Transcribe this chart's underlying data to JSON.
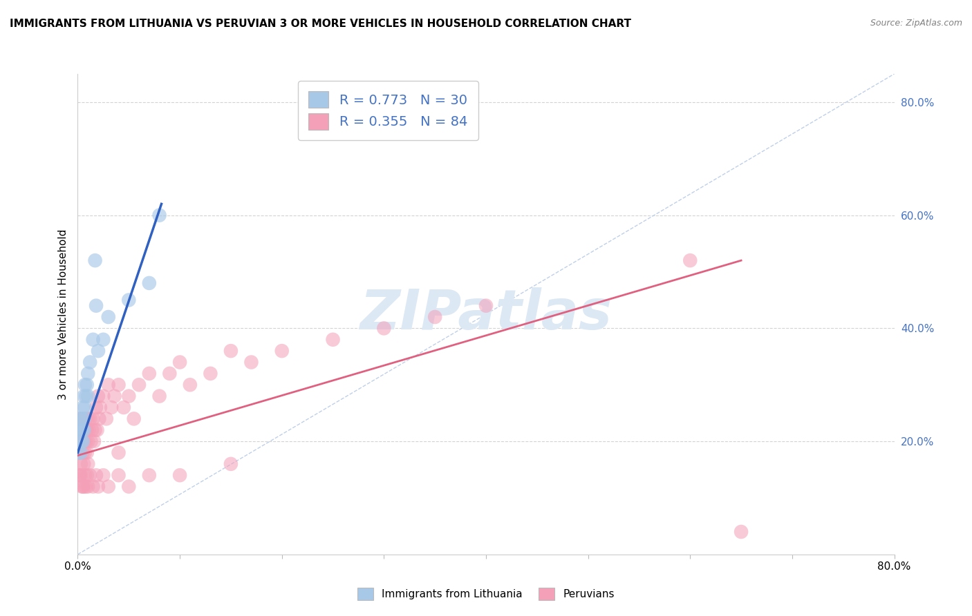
{
  "title": "IMMIGRANTS FROM LITHUANIA VS PERUVIAN 3 OR MORE VEHICLES IN HOUSEHOLD CORRELATION CHART",
  "source": "Source: ZipAtlas.com",
  "ylabel": "3 or more Vehicles in Household",
  "legend_label1": "Immigrants from Lithuania",
  "legend_label2": "Peruvians",
  "R1": 0.773,
  "N1": 30,
  "R2": 0.355,
  "N2": 84,
  "blue_color": "#a8c8e8",
  "blue_line_color": "#3060c0",
  "pink_color": "#f4a0b8",
  "pink_line_color": "#e06080",
  "diag_color": "#c0d0e8",
  "watermark": "ZIPatlas",
  "watermark_color": "#dce8f4",
  "xlim": [
    0.0,
    0.8
  ],
  "ylim": [
    0.0,
    0.85
  ],
  "blue_points_x": [
    0.001,
    0.001,
    0.002,
    0.002,
    0.003,
    0.003,
    0.004,
    0.004,
    0.005,
    0.005,
    0.005,
    0.006,
    0.006,
    0.006,
    0.007,
    0.007,
    0.008,
    0.009,
    0.01,
    0.01,
    0.012,
    0.015,
    0.017,
    0.018,
    0.02,
    0.025,
    0.03,
    0.05,
    0.07,
    0.08
  ],
  "blue_points_y": [
    0.18,
    0.2,
    0.22,
    0.24,
    0.18,
    0.22,
    0.2,
    0.24,
    0.2,
    0.22,
    0.26,
    0.24,
    0.28,
    0.22,
    0.26,
    0.3,
    0.28,
    0.3,
    0.32,
    0.28,
    0.34,
    0.38,
    0.52,
    0.44,
    0.36,
    0.38,
    0.42,
    0.45,
    0.48,
    0.6
  ],
  "pink_points_x": [
    0.001,
    0.001,
    0.001,
    0.002,
    0.002,
    0.002,
    0.003,
    0.003,
    0.003,
    0.004,
    0.004,
    0.005,
    0.005,
    0.005,
    0.006,
    0.006,
    0.007,
    0.007,
    0.008,
    0.008,
    0.009,
    0.009,
    0.01,
    0.01,
    0.01,
    0.011,
    0.012,
    0.013,
    0.014,
    0.015,
    0.016,
    0.017,
    0.018,
    0.019,
    0.02,
    0.021,
    0.022,
    0.025,
    0.028,
    0.03,
    0.033,
    0.036,
    0.04,
    0.045,
    0.05,
    0.055,
    0.06,
    0.07,
    0.08,
    0.09,
    0.1,
    0.11,
    0.13,
    0.15,
    0.17,
    0.2,
    0.25,
    0.3,
    0.35,
    0.4,
    0.001,
    0.002,
    0.003,
    0.004,
    0.005,
    0.006,
    0.007,
    0.008,
    0.009,
    0.01,
    0.012,
    0.015,
    0.018,
    0.02,
    0.025,
    0.03,
    0.04,
    0.05,
    0.07,
    0.1,
    0.15,
    0.6,
    0.65,
    0.04
  ],
  "pink_points_y": [
    0.2,
    0.22,
    0.18,
    0.24,
    0.2,
    0.18,
    0.22,
    0.2,
    0.16,
    0.24,
    0.2,
    0.22,
    0.18,
    0.24,
    0.2,
    0.16,
    0.22,
    0.18,
    0.24,
    0.2,
    0.22,
    0.18,
    0.24,
    0.2,
    0.16,
    0.22,
    0.24,
    0.2,
    0.22,
    0.24,
    0.2,
    0.22,
    0.26,
    0.22,
    0.28,
    0.24,
    0.26,
    0.28,
    0.24,
    0.3,
    0.26,
    0.28,
    0.3,
    0.26,
    0.28,
    0.24,
    0.3,
    0.32,
    0.28,
    0.32,
    0.34,
    0.3,
    0.32,
    0.36,
    0.34,
    0.36,
    0.38,
    0.4,
    0.42,
    0.44,
    0.14,
    0.14,
    0.14,
    0.12,
    0.12,
    0.12,
    0.14,
    0.12,
    0.14,
    0.12,
    0.14,
    0.12,
    0.14,
    0.12,
    0.14,
    0.12,
    0.14,
    0.12,
    0.14,
    0.14,
    0.16,
    0.52,
    0.04,
    0.18
  ],
  "yticks_right": [
    0.2,
    0.4,
    0.6,
    0.8
  ],
  "ytick_labels_right": [
    "20.0%",
    "40.0%",
    "60.0%",
    "80.0%"
  ],
  "grid_color": "#d3d3d3",
  "background_color": "#ffffff",
  "blue_trend_x0": 0.0,
  "blue_trend_y0": 0.18,
  "blue_trend_x1": 0.082,
  "blue_trend_y1": 0.62,
  "pink_trend_x0": 0.0,
  "pink_trend_y0": 0.175,
  "pink_trend_x1": 0.65,
  "pink_trend_y1": 0.52
}
